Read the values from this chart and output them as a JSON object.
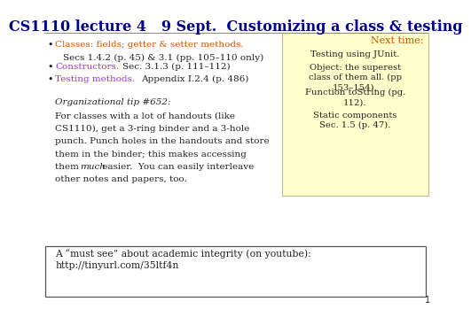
{
  "title": "CS1110 lecture 4   9 Sept.  Customizing a class & testing",
  "title_color": "#00008B",
  "title_fontsize": 11.5,
  "bg_color": "#ffffff",
  "next_time_bg": "#FFFFCC",
  "next_time_title": "Next time:",
  "next_time_title_color": "#CC5500",
  "next_time_items": [
    "Testing using JUnit.",
    "Object: the superest\nclass of them all. (pp\n153–154).",
    "Function toString (pg.\n112).",
    "Static components\nSec. 1.5 (p. 47)."
  ],
  "bottom_box_text": "A “must see” about academic integrity (on youtube):\nhttp://tinyurl.com/35ltf4n",
  "page_number": "1",
  "text_color": "#222222",
  "orange_color": "#CC5500",
  "purple_color": "#9B30FF",
  "font_family": "DejaVu Serif"
}
